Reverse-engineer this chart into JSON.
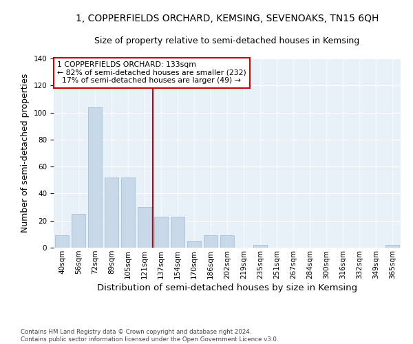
{
  "title": "1, COPPERFIELDS ORCHARD, KEMSING, SEVENOAKS, TN15 6QH",
  "subtitle": "Size of property relative to semi-detached houses in Kemsing",
  "xlabel": "Distribution of semi-detached houses by size in Kemsing",
  "ylabel": "Number of semi-detached properties",
  "bin_labels": [
    "40sqm",
    "56sqm",
    "72sqm",
    "89sqm",
    "105sqm",
    "121sqm",
    "137sqm",
    "154sqm",
    "170sqm",
    "186sqm",
    "202sqm",
    "219sqm",
    "235sqm",
    "251sqm",
    "267sqm",
    "284sqm",
    "300sqm",
    "316sqm",
    "332sqm",
    "349sqm",
    "365sqm"
  ],
  "bin_values": [
    9,
    25,
    104,
    52,
    52,
    30,
    23,
    23,
    5,
    9,
    9,
    0,
    2,
    0,
    0,
    0,
    0,
    0,
    0,
    0,
    2
  ],
  "property_label": "1 COPPERFIELDS ORCHARD: 133sqm",
  "pct_smaller": 82,
  "n_smaller": 232,
  "pct_larger": 17,
  "n_larger": 49,
  "bar_color": "#c8d8e8",
  "bar_edge_color": "#a0b8cc",
  "vline_color": "#cc0000",
  "background_color": "#e8f0f8",
  "footer_text": "Contains HM Land Registry data © Crown copyright and database right 2024.\nContains public sector information licensed under the Open Government Licence v3.0.",
  "ylim": [
    0,
    140
  ],
  "title_fontsize": 10,
  "subtitle_fontsize": 9,
  "axis_label_fontsize": 9,
  "tick_fontsize": 7.5,
  "vline_x": 6.0
}
